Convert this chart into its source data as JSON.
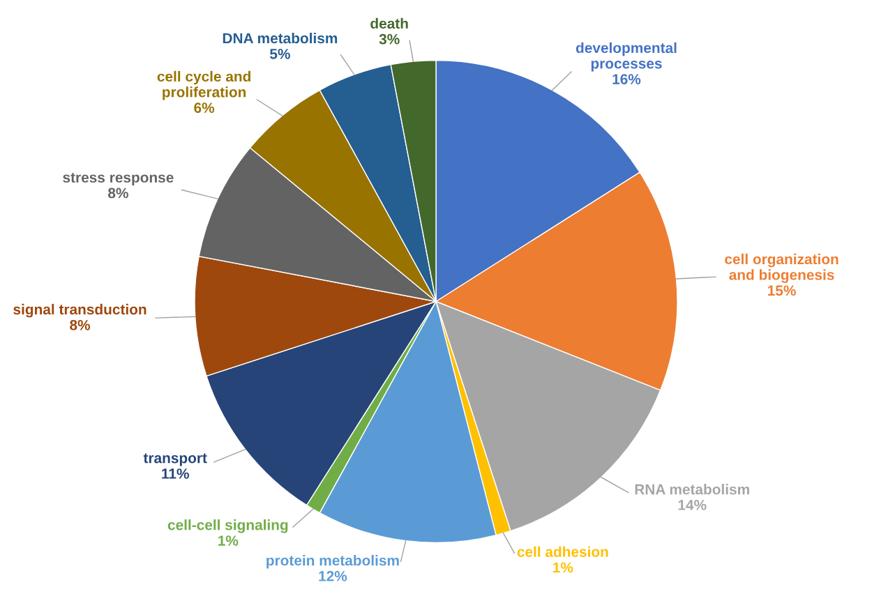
{
  "chart_data": {
    "type": "pie",
    "categories": [
      "developmental processes",
      "cell organization and biogenesis",
      "RNA metabolism",
      "cell adhesion",
      "protein metabolism",
      "cell-cell signaling",
      "transport",
      "signal transduction",
      "stress response",
      "cell cycle and proliferation",
      "DNA metabolism",
      "death"
    ],
    "values": [
      16,
      15,
      14,
      1,
      12,
      1,
      11,
      8,
      8,
      6,
      5,
      3
    ],
    "value_labels": [
      "16%",
      "15%",
      "14%",
      "1%",
      "12%",
      "1%",
      "11%",
      "8%",
      "8%",
      "6%",
      "5%",
      "3%"
    ],
    "colors": [
      "#4472c4",
      "#ed7d31",
      "#a5a5a5",
      "#ffc000",
      "#5b9bd5",
      "#70ad47",
      "#264478",
      "#9e480e",
      "#636363",
      "#997300",
      "#255e91",
      "#43682b"
    ],
    "legend": false
  }
}
